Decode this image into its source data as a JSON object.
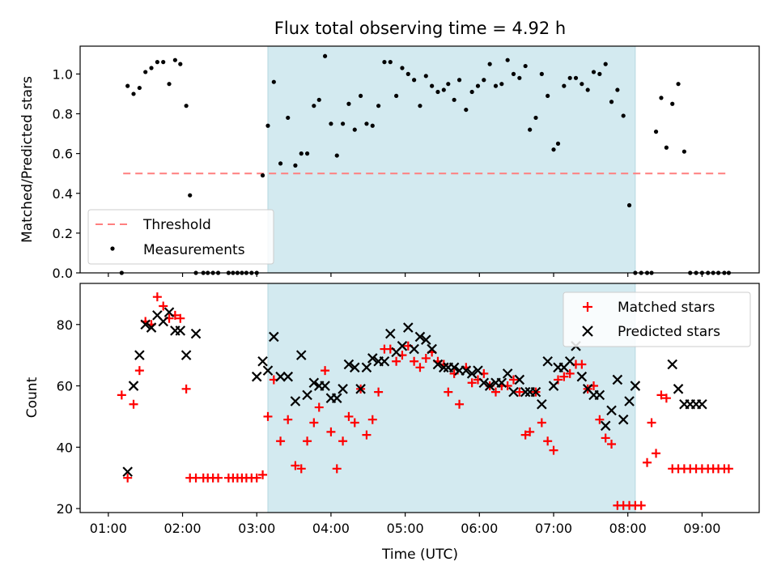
{
  "chart_data": {
    "title": "Flux total observing time = 4.92 h",
    "xlabel": "Time (UTC)",
    "x_tick_labels": [
      "01:00",
      "02:00",
      "03:00",
      "04:00",
      "05:00",
      "06:00",
      "07:00",
      "08:00",
      "09:00"
    ],
    "x_ticks_hours": [
      1,
      2,
      3,
      4,
      5,
      6,
      7,
      8,
      9
    ],
    "x_range_hours": [
      0.62,
      9.77
    ],
    "observing_window_hours": [
      3.15,
      8.1
    ],
    "colors": {
      "window": "#d3eaf0",
      "threshold": "#ff7f7f",
      "matched": "#ff0000",
      "predicted": "#000000",
      "measurement": "#000000"
    },
    "panels": [
      {
        "type": "scatter",
        "ylabel": "Matched/Predicted stars",
        "ylim": [
          0,
          1.14
        ],
        "y_ticks": [
          "0.0",
          "0.2",
          "0.4",
          "0.6",
          "0.8",
          "1.0"
        ],
        "y_tick_values": [
          0,
          0.2,
          0.4,
          0.6,
          0.8,
          1.0
        ],
        "legend_position": "lower-left",
        "threshold": {
          "name": "Threshold",
          "value": 0.5,
          "x_range": [
            1.2,
            9.33
          ]
        },
        "series": [
          {
            "name": "Measurements",
            "x": [
              1.18,
              1.26,
              1.34,
              1.42,
              1.5,
              1.58,
              1.66,
              1.74,
              1.82,
              1.9,
              1.97,
              2.05,
              2.1,
              2.18,
              2.28,
              2.34,
              2.41,
              2.48,
              2.62,
              2.68,
              2.74,
              2.8,
              2.86,
              2.93,
              3.0,
              3.08,
              3.15,
              3.23,
              3.32,
              3.42,
              3.52,
              3.6,
              3.68,
              3.77,
              3.84,
              3.92,
              4.0,
              4.08,
              4.16,
              4.24,
              4.32,
              4.4,
              4.48,
              4.56,
              4.64,
              4.72,
              4.8,
              4.88,
              4.96,
              5.04,
              5.12,
              5.2,
              5.28,
              5.36,
              5.44,
              5.52,
              5.58,
              5.66,
              5.73,
              5.82,
              5.9,
              5.98,
              6.06,
              6.14,
              6.22,
              6.3,
              6.38,
              6.46,
              6.54,
              6.62,
              6.68,
              6.76,
              6.84,
              6.92,
              7.0,
              7.06,
              7.14,
              7.22,
              7.3,
              7.38,
              7.46,
              7.54,
              7.62,
              7.7,
              7.78,
              7.86,
              7.94,
              8.02,
              8.1,
              8.18,
              8.26,
              8.32,
              8.38,
              8.45,
              8.52,
              8.6,
              8.68,
              8.76,
              8.84,
              8.92,
              9.0,
              9.08,
              9.15,
              9.22,
              9.3,
              9.36
            ],
            "y": [
              0.0,
              0.94,
              0.9,
              0.93,
              1.01,
              1.03,
              1.06,
              1.06,
              0.95,
              1.07,
              1.05,
              0.84,
              0.39,
              0.0,
              0.0,
              0.0,
              0.0,
              0.0,
              0.0,
              0.0,
              0.0,
              0.0,
              0.0,
              0.0,
              0.0,
              0.49,
              0.74,
              0.96,
              0.55,
              0.78,
              0.54,
              0.6,
              0.6,
              0.84,
              0.87,
              1.09,
              0.75,
              0.59,
              0.75,
              0.85,
              0.72,
              0.89,
              0.75,
              0.74,
              0.84,
              1.06,
              1.06,
              0.89,
              1.03,
              1.0,
              0.97,
              0.84,
              0.99,
              0.94,
              0.91,
              0.92,
              0.95,
              0.87,
              0.97,
              0.82,
              0.91,
              0.94,
              0.97,
              1.05,
              0.94,
              0.95,
              1.07,
              1.0,
              0.98,
              1.04,
              0.72,
              0.78,
              1.0,
              0.89,
              0.62,
              0.65,
              0.94,
              0.98,
              0.98,
              0.95,
              0.92,
              1.01,
              1.0,
              1.05,
              0.86,
              0.92,
              0.79,
              0.34,
              0.0,
              0.0,
              0.0,
              0.0,
              0.71,
              0.88,
              0.63,
              0.85,
              0.95,
              0.61,
              0.0,
              0.0,
              0.0,
              0.0,
              0.0,
              0.0,
              0.0,
              0.0
            ]
          }
        ]
      },
      {
        "type": "scatter",
        "ylabel": "Count",
        "ylim": [
          18.7,
          93.4
        ],
        "y_ticks": [
          "20",
          "40",
          "60",
          "80"
        ],
        "y_tick_values": [
          20,
          40,
          60,
          80
        ],
        "legend_position": "upper-right",
        "series": [
          {
            "name": "Matched stars",
            "x": [
              1.18,
              1.26,
              1.34,
              1.42,
              1.5,
              1.58,
              1.66,
              1.74,
              1.82,
              1.9,
              1.97,
              2.05,
              2.1,
              2.18,
              2.28,
              2.34,
              2.41,
              2.48,
              2.62,
              2.68,
              2.74,
              2.8,
              2.86,
              2.93,
              3.0,
              3.08,
              3.15,
              3.23,
              3.32,
              3.42,
              3.52,
              3.6,
              3.68,
              3.77,
              3.84,
              3.92,
              4.0,
              4.08,
              4.16,
              4.24,
              4.32,
              4.4,
              4.48,
              4.56,
              4.64,
              4.72,
              4.8,
              4.88,
              4.96,
              5.04,
              5.12,
              5.2,
              5.28,
              5.36,
              5.44,
              5.52,
              5.58,
              5.66,
              5.73,
              5.82,
              5.9,
              5.98,
              6.06,
              6.14,
              6.22,
              6.3,
              6.38,
              6.46,
              6.54,
              6.62,
              6.68,
              6.76,
              6.84,
              6.92,
              7.0,
              7.06,
              7.14,
              7.22,
              7.3,
              7.38,
              7.46,
              7.54,
              7.62,
              7.7,
              7.78,
              7.86,
              7.94,
              8.02,
              8.1,
              8.18,
              8.26,
              8.32,
              8.38,
              8.45,
              8.52,
              8.6,
              8.68,
              8.76,
              8.84,
              8.92,
              9.0,
              9.08,
              9.15,
              9.22,
              9.3,
              9.36
            ],
            "y": [
              57,
              30,
              54,
              65,
              81,
              80,
              89,
              86,
              82,
              83,
              82,
              59,
              30,
              30,
              30,
              30,
              30,
              30,
              30,
              30,
              30,
              30,
              30,
              30,
              30,
              31,
              50,
              62,
              42,
              49,
              34,
              33,
              42,
              48,
              53,
              65,
              45,
              33,
              42,
              50,
              48,
              59,
              44,
              49,
              58,
              72,
              72,
              68,
              70,
              73,
              68,
              66,
              69,
              71,
              68,
              67,
              58,
              64,
              54,
              66,
              61,
              62,
              64,
              60,
              58,
              60,
              60,
              62,
              58,
              44,
              45,
              58,
              48,
              42,
              39,
              62,
              63,
              64,
              67,
              67,
              59,
              60,
              49,
              43,
              41,
              21,
              21,
              21,
              21,
              21,
              35,
              48,
              38,
              57,
              56,
              33,
              33,
              33,
              33,
              33,
              33,
              33,
              33,
              33,
              33,
              33
            ]
          },
          {
            "name": "Predicted stars",
            "x": [
              1.26,
              1.34,
              1.42,
              1.5,
              1.58,
              1.66,
              1.74,
              1.82,
              1.9,
              1.97,
              2.05,
              2.18,
              3.0,
              3.08,
              3.15,
              3.23,
              3.32,
              3.42,
              3.52,
              3.6,
              3.68,
              3.77,
              3.84,
              3.92,
              4.0,
              4.08,
              4.16,
              4.24,
              4.32,
              4.4,
              4.48,
              4.56,
              4.64,
              4.72,
              4.8,
              4.88,
              4.96,
              5.04,
              5.12,
              5.2,
              5.28,
              5.36,
              5.44,
              5.52,
              5.58,
              5.66,
              5.73,
              5.82,
              5.9,
              5.98,
              6.06,
              6.14,
              6.22,
              6.3,
              6.38,
              6.46,
              6.54,
              6.62,
              6.68,
              6.76,
              6.84,
              6.92,
              7.0,
              7.06,
              7.14,
              7.22,
              7.3,
              7.38,
              7.46,
              7.54,
              7.62,
              7.7,
              7.78,
              7.86,
              7.94,
              8.02,
              8.1,
              8.6,
              8.68,
              8.76,
              8.84,
              8.92,
              9.0
            ],
            "y": [
              32,
              60,
              70,
              80,
              79,
              83,
              81,
              84,
              78,
              78,
              70,
              77,
              63,
              68,
              65,
              76,
              63,
              63,
              55,
              70,
              57,
              61,
              60,
              60,
              56,
              56,
              59,
              67,
              66,
              59,
              66,
              69,
              68,
              68,
              77,
              71,
              73,
              79,
              72,
              76,
              75,
              72,
              67,
              66,
              66,
              66,
              65,
              65,
              64,
              65,
              61,
              60,
              61,
              61,
              64,
              58,
              62,
              58,
              58,
              58,
              54,
              68,
              60,
              66,
              66,
              68,
              73,
              63,
              59,
              57,
              57,
              47,
              52,
              62,
              49,
              55,
              60,
              67,
              59,
              54,
              54,
              54,
              54
            ]
          }
        ]
      }
    ]
  }
}
